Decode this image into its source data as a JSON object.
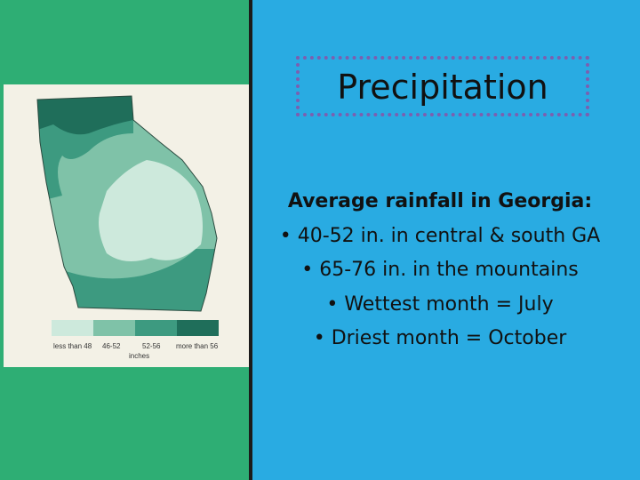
{
  "slide": {
    "title": "Precipitation",
    "body": {
      "heading": "Average rainfall in Georgia:",
      "bullets": [
        "• 40-52 in. in central & south GA",
        "• 65-76 in. in the mountains",
        "• Wettest month = July",
        "• Driest month = October"
      ]
    },
    "map": {
      "legend": [
        "less than 48",
        "46-52",
        "52-56",
        "more than 56"
      ],
      "legend_unit": "inches"
    }
  }
}
